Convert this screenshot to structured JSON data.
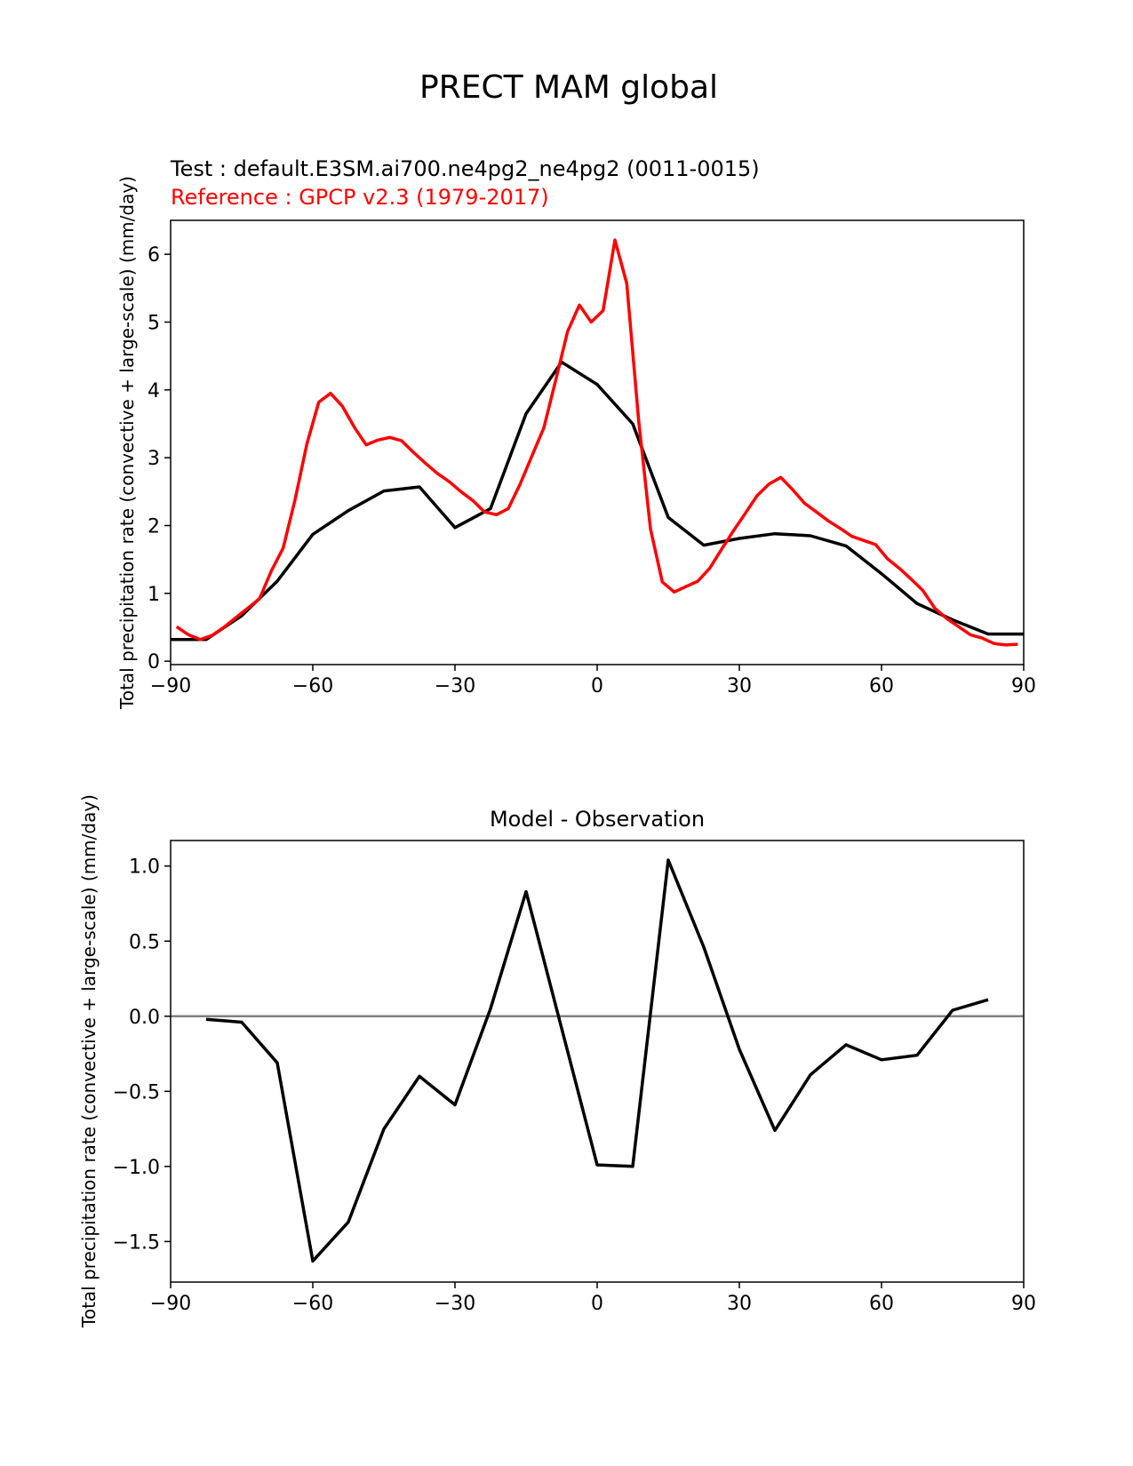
{
  "figure": {
    "title": "PRECT MAM global"
  },
  "colors": {
    "test": "#000000",
    "reference": "#ff0000",
    "zero_line": "#808080",
    "axes": "#000000"
  },
  "chart_data": [
    {
      "type": "line",
      "test_label": "Test : default.E3SM.ai700.ne4pg2_ne4pg2 (0011-0015)",
      "reference_label": "Reference : GPCP v2.3 (1979-2017)",
      "ylabel": "Total precipitation rate (convective + large-scale) (mm/day)",
      "xlabel": "",
      "xlim": [
        -90,
        90
      ],
      "ylim": [
        -0.05,
        6.5
      ],
      "xticks": [
        -90,
        -60,
        -30,
        0,
        30,
        60,
        90
      ],
      "xtick_labels": [
        "−90",
        "−60",
        "−30",
        "0",
        "30",
        "60",
        "90"
      ],
      "yticks": [
        0,
        1,
        2,
        3,
        4,
        5,
        6
      ],
      "ytick_labels": [
        "0",
        "1",
        "2",
        "3",
        "4",
        "5",
        "6"
      ],
      "series": [
        {
          "key": "test",
          "x": [
            -90,
            -82.5,
            -75,
            -67.5,
            -60,
            -52.5,
            -45,
            -37.5,
            -30,
            -22.5,
            -15,
            -7.5,
            0,
            7.5,
            15,
            22.5,
            30,
            37.5,
            45,
            52.5,
            60,
            67.5,
            75,
            82.5,
            90
          ],
          "y": [
            0.32,
            0.32,
            0.67,
            1.18,
            1.87,
            2.22,
            2.51,
            2.57,
            1.97,
            2.25,
            3.65,
            4.41,
            4.08,
            3.5,
            2.12,
            1.71,
            1.81,
            1.88,
            1.85,
            1.7,
            1.29,
            0.85,
            0.61,
            0.4,
            0.4
          ]
        },
        {
          "key": "reference",
          "x": [
            -88.75,
            -86.25,
            -83.75,
            -81.25,
            -78.75,
            -76.25,
            -73.75,
            -71.25,
            -68.75,
            -66.25,
            -63.75,
            -61.25,
            -58.75,
            -56.25,
            -53.75,
            -51.25,
            -48.75,
            -46.25,
            -43.75,
            -41.25,
            -38.75,
            -36.25,
            -33.75,
            -31.25,
            -28.75,
            -26.25,
            -23.75,
            -21.25,
            -18.75,
            -16.25,
            -13.75,
            -11.25,
            -8.75,
            -6.25,
            -3.75,
            -1.25,
            1.25,
            3.75,
            6.25,
            8.75,
            11.25,
            13.75,
            16.25,
            18.75,
            21.25,
            23.75,
            26.25,
            28.75,
            31.25,
            33.75,
            36.25,
            38.75,
            41.25,
            43.75,
            46.25,
            48.75,
            51.25,
            53.75,
            56.25,
            58.75,
            61.25,
            63.75,
            66.25,
            68.75,
            71.25,
            73.75,
            76.25,
            78.75,
            81.25,
            83.75,
            86.25,
            88.75
          ],
          "y": [
            0.51,
            0.39,
            0.32,
            0.38,
            0.5,
            0.64,
            0.78,
            0.92,
            1.33,
            1.67,
            2.38,
            3.2,
            3.82,
            3.95,
            3.76,
            3.45,
            3.19,
            3.26,
            3.3,
            3.25,
            3.08,
            2.92,
            2.77,
            2.65,
            2.5,
            2.37,
            2.2,
            2.16,
            2.25,
            2.61,
            3.03,
            3.44,
            4.14,
            4.86,
            5.25,
            5.0,
            5.17,
            6.21,
            5.57,
            3.55,
            1.95,
            1.17,
            1.02,
            1.1,
            1.18,
            1.37,
            1.65,
            1.92,
            2.18,
            2.44,
            2.61,
            2.71,
            2.53,
            2.33,
            2.2,
            2.07,
            1.96,
            1.84,
            1.78,
            1.72,
            1.51,
            1.37,
            1.21,
            1.04,
            0.78,
            0.63,
            0.51,
            0.39,
            0.34,
            0.26,
            0.24,
            0.25
          ]
        }
      ]
    },
    {
      "type": "line",
      "title": "Model - Observation",
      "ylabel": "Total precipitation rate (convective + large-scale) (mm/day)",
      "xlabel": "",
      "xlim": [
        -90,
        90
      ],
      "ylim": [
        -1.77,
        1.17
      ],
      "xticks": [
        -90,
        -60,
        -30,
        0,
        30,
        60,
        90
      ],
      "xtick_labels": [
        "−90",
        "−60",
        "−30",
        "0",
        "30",
        "60",
        "90"
      ],
      "yticks": [
        1.0,
        0.5,
        0.0,
        -0.5,
        -1.0,
        -1.5
      ],
      "ytick_labels": [
        "1.0",
        "0.5",
        "0.0",
        "−0.5",
        "−1.0",
        "−1.5"
      ],
      "zero_line": 0,
      "series": [
        {
          "key": "difference",
          "x": [
            -82.5,
            -75,
            -67.5,
            -60,
            -52.5,
            -45,
            -37.5,
            -30,
            -22.5,
            -15,
            -7.5,
            0,
            7.5,
            15,
            22.5,
            30,
            37.5,
            45,
            52.5,
            60,
            67.5,
            75,
            82.5
          ],
          "y": [
            -0.02,
            -0.04,
            -0.31,
            -1.63,
            -1.37,
            -0.75,
            -0.4,
            -0.59,
            0.05,
            0.83,
            -0.08,
            -0.99,
            -1.0,
            1.04,
            0.46,
            -0.22,
            -0.76,
            -0.39,
            -0.19,
            -0.29,
            -0.26,
            0.04,
            0.11
          ]
        }
      ]
    }
  ]
}
